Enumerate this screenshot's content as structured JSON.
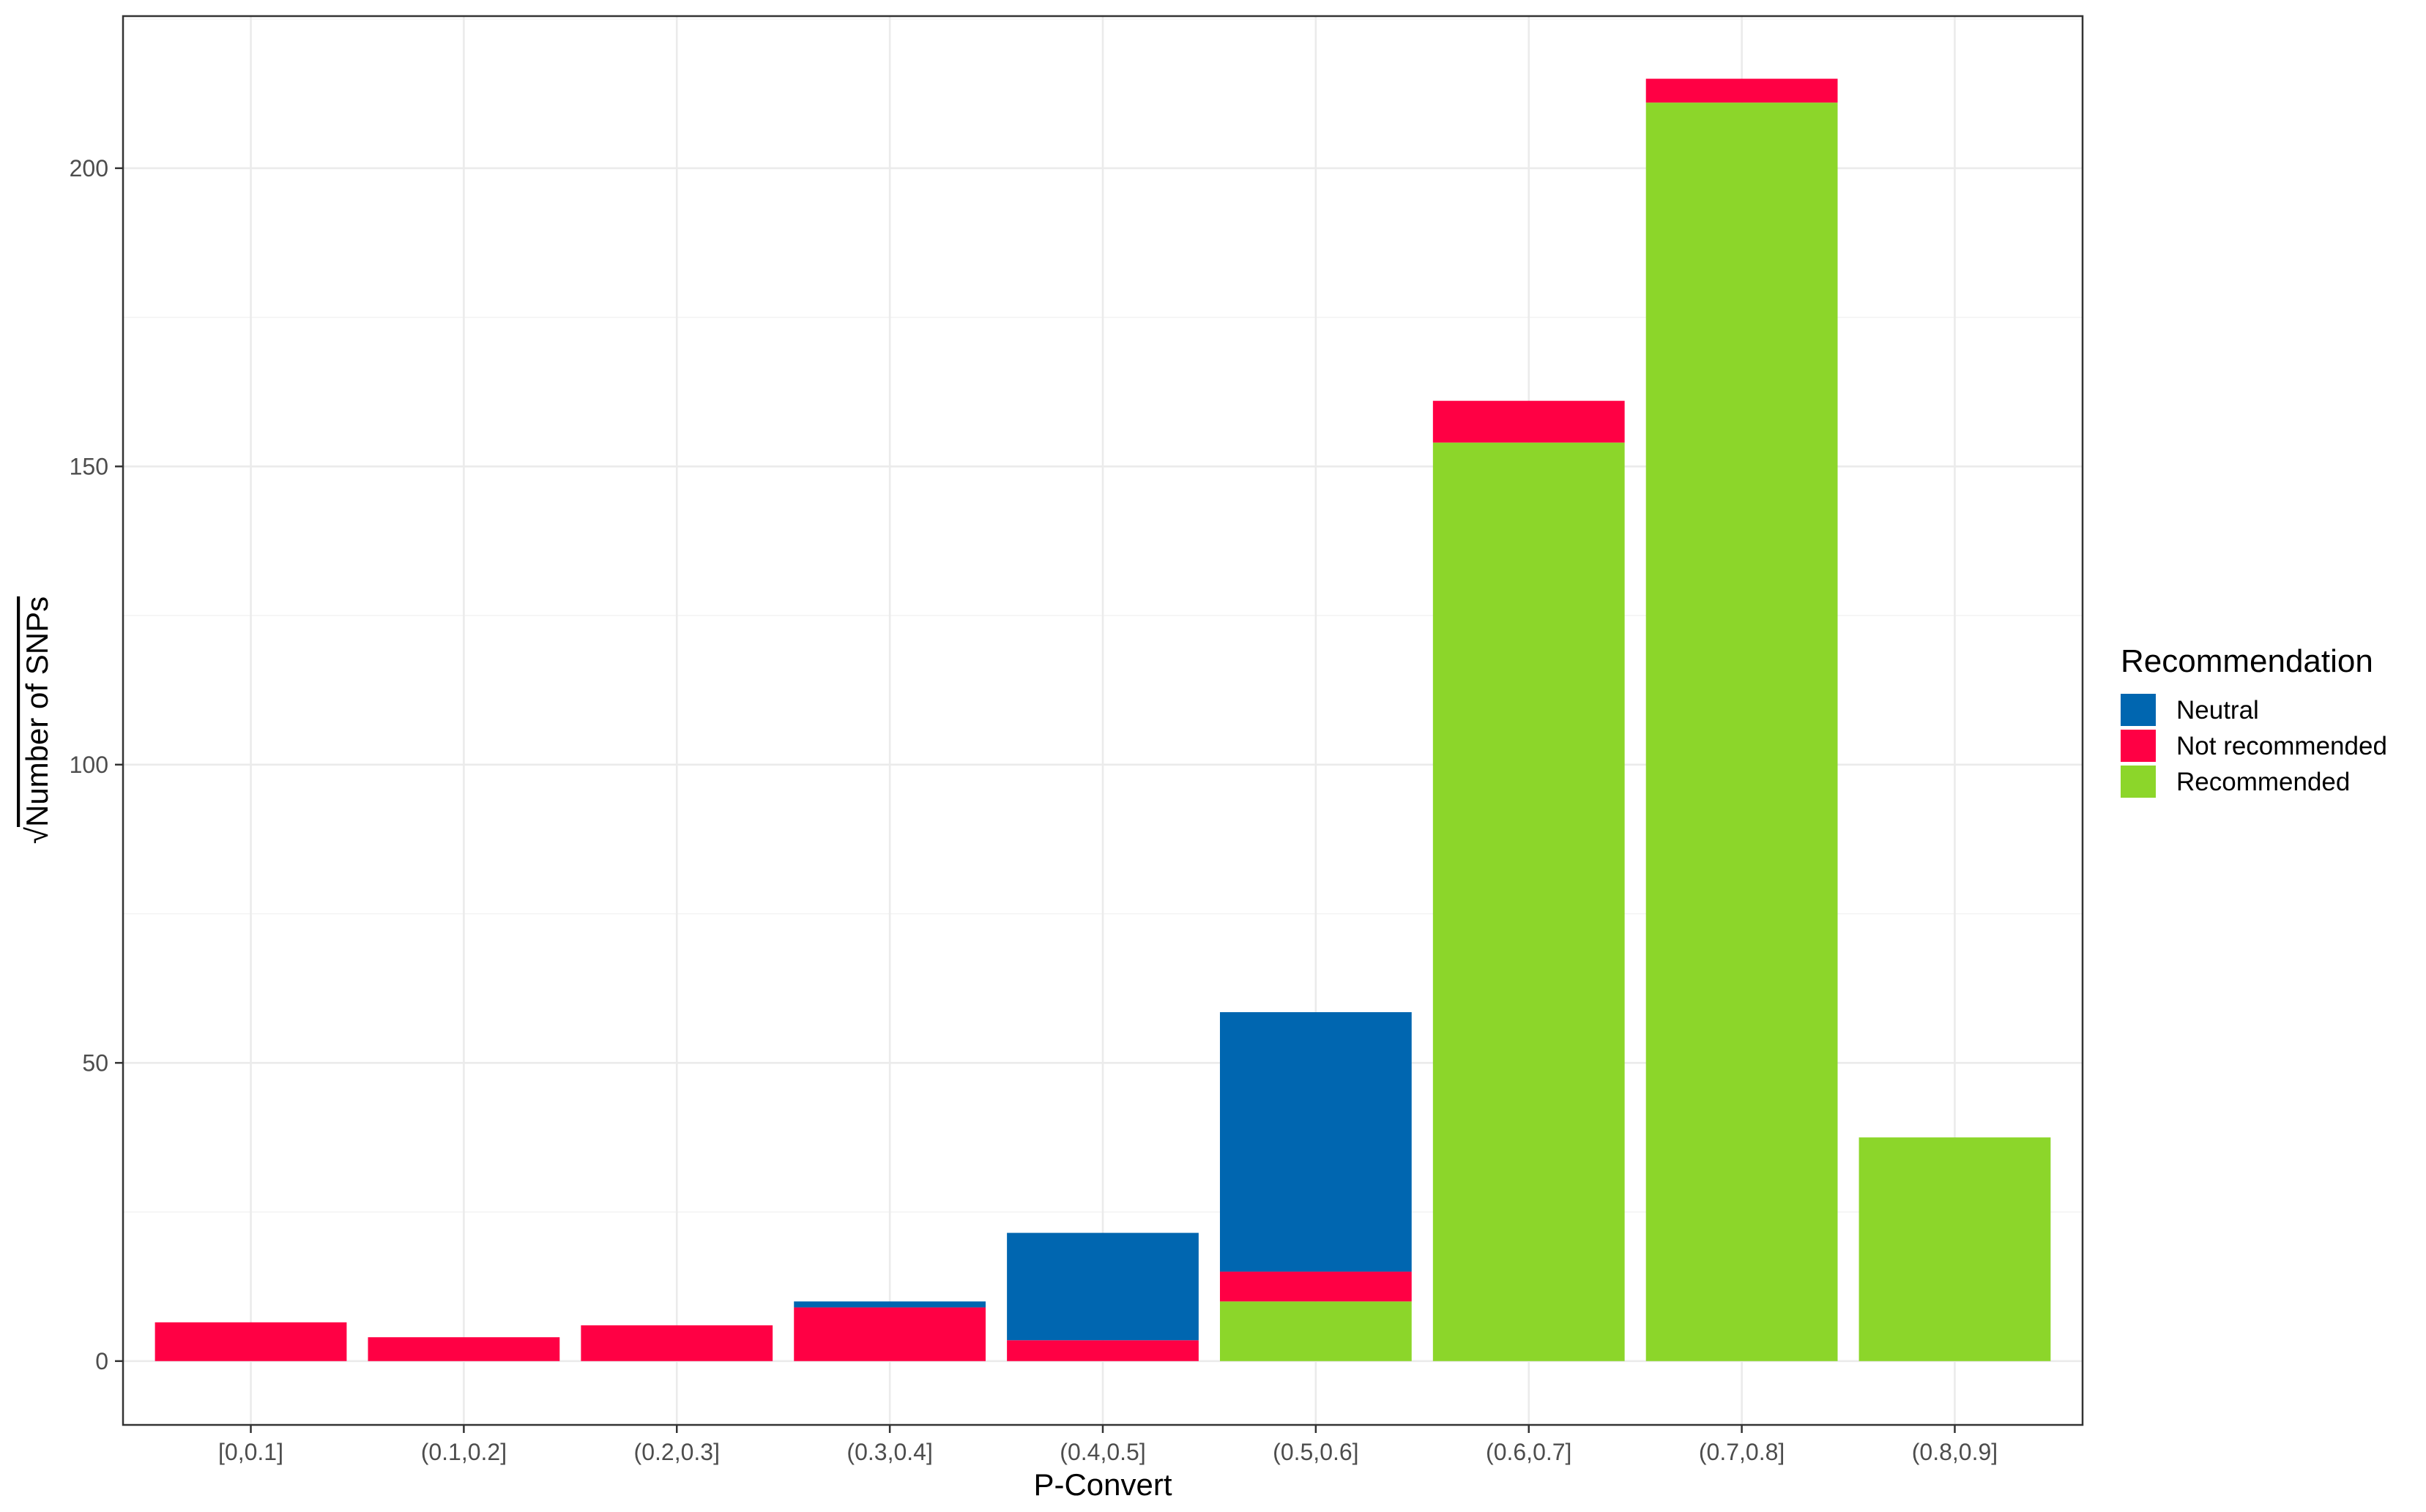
{
  "chart_data": {
    "type": "bar",
    "stacked": true,
    "xlabel": "P-Convert",
    "ylabel": "√Number of SNPs",
    "ylabel_radical": "√",
    "ylabel_text": "Number of SNPs",
    "categories": [
      "[0,0.1]",
      "(0.1,0.2]",
      "(0.2,0.3]",
      "(0.3,0.4]",
      "(0.4,0.5]",
      "(0.5,0.6]",
      "(0.6,0.7]",
      "(0.7,0.8]",
      "(0.8,0.9]"
    ],
    "series": [
      {
        "name": "Recommended",
        "color": "#8cd62a",
        "values": [
          0,
          0,
          0,
          0,
          0,
          10,
          154,
          211,
          37.5
        ]
      },
      {
        "name": "Not recommended",
        "color": "#ff0044",
        "values": [
          6.5,
          4,
          6,
          9,
          3.5,
          5,
          7,
          4,
          0
        ]
      },
      {
        "name": "Neutral",
        "color": "#0066b0",
        "values": [
          0,
          0,
          0,
          1,
          18,
          43.5,
          0,
          0,
          0
        ]
      }
    ],
    "ylim": [
      -10.7,
      225.5
    ],
    "yticks": [
      0,
      50,
      100,
      150,
      200
    ],
    "grid": true,
    "legend": {
      "title": "Recommendation",
      "position": "right",
      "items": [
        {
          "label": "Neutral",
          "color": "#0066b0"
        },
        {
          "label": "Not recommended",
          "color": "#ff0044"
        },
        {
          "label": "Recommended",
          "color": "#8cd62a"
        }
      ]
    }
  }
}
